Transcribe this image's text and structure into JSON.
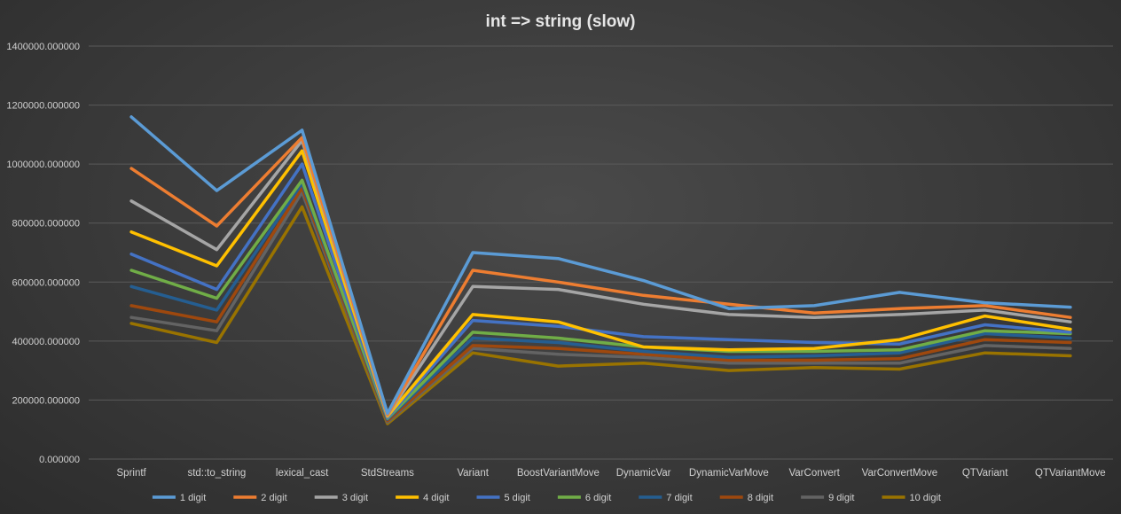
{
  "chart_data": {
    "type": "line",
    "title": "int => string  (slow)",
    "xlabel": "",
    "ylabel": "",
    "ylim": [
      0,
      1400000
    ],
    "yticks": [
      "0.000000",
      "200000.000000",
      "400000.000000",
      "600000.000000",
      "800000.000000",
      "1000000.000000",
      "1200000.000000",
      "1400000.000000"
    ],
    "grid": true,
    "legend": "bottom",
    "categories": [
      "Sprintf",
      "std::to_string",
      "lexical_cast",
      "StdStreams",
      "Variant",
      "BoostVariantMove",
      "DynamicVar",
      "DynamicVarMove",
      "VarConvert",
      "VarConvertMove",
      "QTVariant",
      "QTVariantMove"
    ],
    "series": [
      {
        "name": "1 digit",
        "color": "#5b9bd5",
        "values": [
          1160000,
          910000,
          1115000,
          155000,
          700000,
          680000,
          605000,
          510000,
          520000,
          565000,
          530000,
          515000
        ]
      },
      {
        "name": "2 digit",
        "color": "#ed7d31",
        "values": [
          985000,
          790000,
          1090000,
          150000,
          640000,
          600000,
          555000,
          525000,
          495000,
          510000,
          520000,
          480000
        ]
      },
      {
        "name": "3 digit",
        "color": "#a5a5a5",
        "values": [
          875000,
          710000,
          1080000,
          148000,
          585000,
          575000,
          525000,
          490000,
          480000,
          490000,
          505000,
          465000
        ]
      },
      {
        "name": "4 digit",
        "color": "#ffc000",
        "values": [
          770000,
          655000,
          1045000,
          145000,
          490000,
          465000,
          380000,
          370000,
          375000,
          405000,
          485000,
          440000
        ]
      },
      {
        "name": "5 digit",
        "color": "#4472c4",
        "values": [
          695000,
          575000,
          1000000,
          140000,
          470000,
          450000,
          415000,
          405000,
          395000,
          390000,
          455000,
          430000
        ]
      },
      {
        "name": "6 digit",
        "color": "#70ad47",
        "values": [
          640000,
          545000,
          945000,
          138000,
          430000,
          410000,
          380000,
          365000,
          365000,
          370000,
          435000,
          425000
        ]
      },
      {
        "name": "7 digit",
        "color": "#255e91",
        "values": [
          585000,
          505000,
          935000,
          135000,
          410000,
          395000,
          365000,
          345000,
          350000,
          360000,
          425000,
          410000
        ]
      },
      {
        "name": "8 digit",
        "color": "#9e480e",
        "values": [
          520000,
          465000,
          920000,
          130000,
          385000,
          375000,
          355000,
          335000,
          335000,
          340000,
          405000,
          395000
        ]
      },
      {
        "name": "9 digit",
        "color": "#636363",
        "values": [
          480000,
          435000,
          905000,
          125000,
          375000,
          355000,
          345000,
          325000,
          325000,
          325000,
          385000,
          375000
        ]
      },
      {
        "name": "10 digit",
        "color": "#997300",
        "values": [
          460000,
          395000,
          855000,
          120000,
          360000,
          315000,
          325000,
          300000,
          310000,
          305000,
          360000,
          350000
        ]
      }
    ]
  }
}
